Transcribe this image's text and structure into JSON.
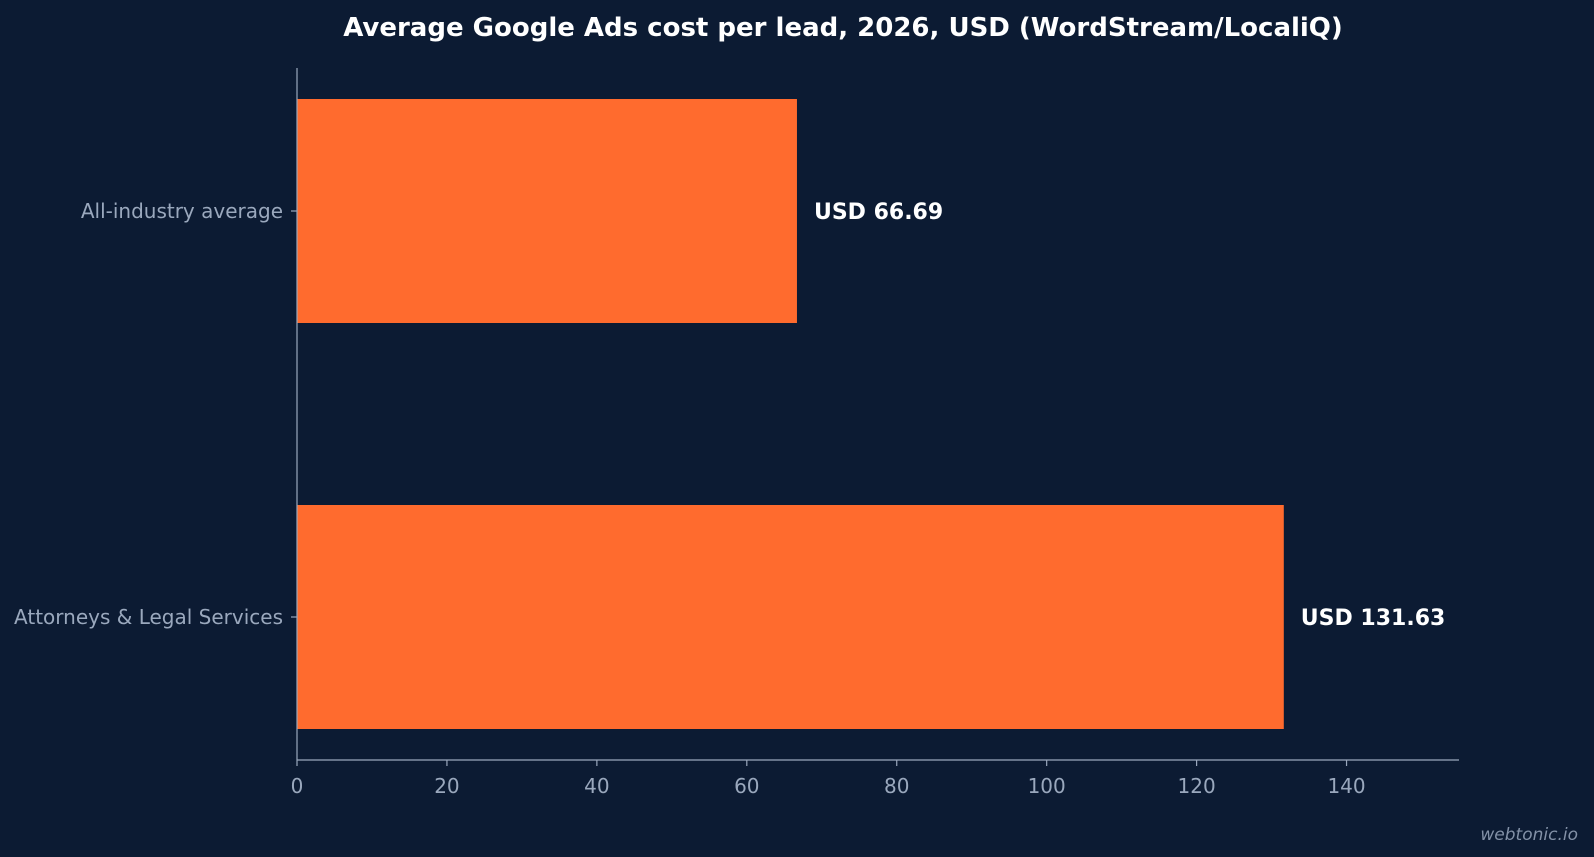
{
  "chart_data": {
    "type": "bar",
    "orientation": "horizontal",
    "title": "Average Google Ads cost per lead, 2026, USD (WordStream/LocaliQ)",
    "xlabel": "",
    "ylabel": "",
    "categories": [
      "All-industry average",
      "Attorneys & Legal Services"
    ],
    "values": [
      66.69,
      131.63
    ],
    "value_labels": [
      "USD 66.69",
      "USD 131.63"
    ],
    "xlim": [
      0,
      155
    ],
    "xticks": [
      0,
      20,
      40,
      60,
      80,
      100,
      120,
      140
    ],
    "grid": false,
    "bar_color": "#ff6b2e",
    "background_color": "#0c1b33"
  },
  "watermark": "webtonic.io"
}
